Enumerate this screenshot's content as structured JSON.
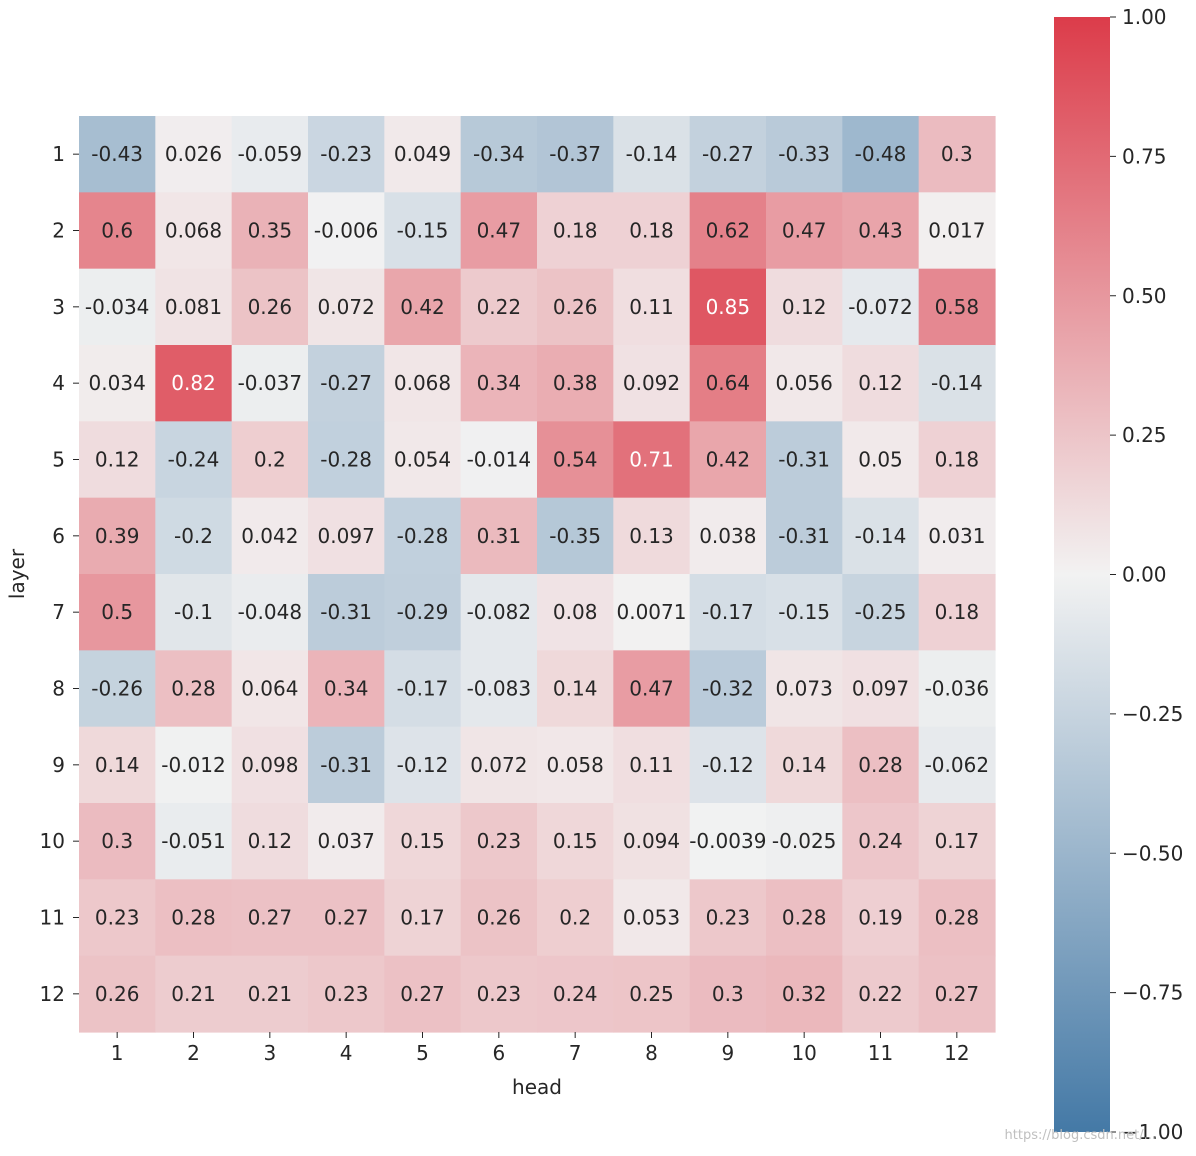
{
  "chart_data": {
    "type": "heatmap",
    "title": "",
    "xlabel": "head",
    "ylabel": "layer",
    "x_categories": [
      "1",
      "2",
      "3",
      "4",
      "5",
      "6",
      "7",
      "8",
      "9",
      "10",
      "11",
      "12"
    ],
    "y_categories": [
      "1",
      "2",
      "3",
      "4",
      "5",
      "6",
      "7",
      "8",
      "9",
      "10",
      "11",
      "12"
    ],
    "values": [
      [
        -0.43,
        0.026,
        -0.059,
        -0.23,
        0.049,
        -0.34,
        -0.37,
        -0.14,
        -0.27,
        -0.33,
        -0.48,
        0.3
      ],
      [
        0.6,
        0.068,
        0.35,
        -0.006,
        -0.15,
        0.47,
        0.18,
        0.18,
        0.62,
        0.47,
        0.43,
        0.017
      ],
      [
        -0.034,
        0.081,
        0.26,
        0.072,
        0.42,
        0.22,
        0.26,
        0.11,
        0.85,
        0.12,
        -0.072,
        0.58
      ],
      [
        0.034,
        0.82,
        -0.037,
        -0.27,
        0.068,
        0.34,
        0.38,
        0.092,
        0.64,
        0.056,
        0.12,
        -0.14
      ],
      [
        0.12,
        -0.24,
        0.2,
        -0.28,
        0.054,
        -0.014,
        0.54,
        0.71,
        0.42,
        -0.31,
        0.05,
        0.18
      ],
      [
        0.39,
        -0.2,
        0.042,
        0.097,
        -0.28,
        0.31,
        -0.35,
        0.13,
        0.038,
        -0.31,
        -0.14,
        0.031
      ],
      [
        0.5,
        -0.1,
        -0.048,
        -0.31,
        -0.29,
        -0.082,
        0.08,
        0.0071,
        -0.17,
        -0.15,
        -0.25,
        0.18
      ],
      [
        -0.26,
        0.28,
        0.064,
        0.34,
        -0.17,
        -0.083,
        0.14,
        0.47,
        -0.32,
        0.073,
        0.097,
        -0.036
      ],
      [
        0.14,
        -0.012,
        0.098,
        -0.31,
        -0.12,
        0.072,
        0.058,
        0.11,
        -0.12,
        0.14,
        0.28,
        -0.062
      ],
      [
        0.3,
        -0.051,
        0.12,
        0.037,
        0.15,
        0.23,
        0.15,
        0.094,
        -0.0039,
        -0.025,
        0.24,
        0.17
      ],
      [
        0.23,
        0.28,
        0.27,
        0.27,
        0.17,
        0.26,
        0.2,
        0.053,
        0.23,
        0.28,
        0.19,
        0.28
      ],
      [
        0.26,
        0.21,
        0.21,
        0.23,
        0.27,
        0.23,
        0.24,
        0.25,
        0.3,
        0.32,
        0.22,
        0.27
      ]
    ],
    "cell_labels": [
      [
        "-0.43",
        "0.026",
        "-0.059",
        "-0.23",
        "0.049",
        "-0.34",
        "-0.37",
        "-0.14",
        "-0.27",
        "-0.33",
        "-0.48",
        "0.3"
      ],
      [
        "0.6",
        "0.068",
        "0.35",
        "-0.006",
        "-0.15",
        "0.47",
        "0.18",
        "0.18",
        "0.62",
        "0.47",
        "0.43",
        "0.017"
      ],
      [
        "-0.034",
        "0.081",
        "0.26",
        "0.072",
        "0.42",
        "0.22",
        "0.26",
        "0.11",
        "0.85",
        "0.12",
        "-0.072",
        "0.58"
      ],
      [
        "0.034",
        "0.82",
        "-0.037",
        "-0.27",
        "0.068",
        "0.34",
        "0.38",
        "0.092",
        "0.64",
        "0.056",
        "0.12",
        "-0.14"
      ],
      [
        "0.12",
        "-0.24",
        "0.2",
        "-0.28",
        "0.054",
        "-0.014",
        "0.54",
        "0.71",
        "0.42",
        "-0.31",
        "0.05",
        "0.18"
      ],
      [
        "0.39",
        "-0.2",
        "0.042",
        "0.097",
        "-0.28",
        "0.31",
        "-0.35",
        "0.13",
        "0.038",
        "-0.31",
        "-0.14",
        "0.031"
      ],
      [
        "0.5",
        "-0.1",
        "-0.048",
        "-0.31",
        "-0.29",
        "-0.082",
        "0.08",
        "0.0071",
        "-0.17",
        "-0.15",
        "-0.25",
        "0.18"
      ],
      [
        "-0.26",
        "0.28",
        "0.064",
        "0.34",
        "-0.17",
        "-0.083",
        "0.14",
        "0.47",
        "-0.32",
        "0.073",
        "0.097",
        "-0.036"
      ],
      [
        "0.14",
        "-0.012",
        "0.098",
        "-0.31",
        "-0.12",
        "0.072",
        "0.058",
        "0.11",
        "-0.12",
        "0.14",
        "0.28",
        "-0.062"
      ],
      [
        "0.3",
        "-0.051",
        "0.12",
        "0.037",
        "0.15",
        "0.23",
        "0.15",
        "0.094",
        "-0.0039",
        "-0.025",
        "0.24",
        "0.17"
      ],
      [
        "0.23",
        "0.28",
        "0.27",
        "0.27",
        "0.17",
        "0.26",
        "0.2",
        "0.053",
        "0.23",
        "0.28",
        "0.19",
        "0.28"
      ],
      [
        "0.26",
        "0.21",
        "0.21",
        "0.23",
        "0.27",
        "0.23",
        "0.24",
        "0.25",
        "0.3",
        "0.32",
        "0.22",
        "0.27"
      ]
    ],
    "vmin": -1.0,
    "vmax": 1.0,
    "colormap": {
      "low": "#4479a6",
      "mid": "#f2f2f2",
      "high": "#dc3c4a"
    },
    "colorbar": {
      "ticks": [
        1.0,
        0.75,
        0.5,
        0.25,
        0.0,
        -0.25,
        -0.5,
        -0.75,
        -1.0
      ],
      "tick_labels": [
        "1.00",
        "0.75",
        "0.50",
        "0.25",
        "0.00",
        "−0.25",
        "−0.50",
        "−0.75",
        "−1.00"
      ]
    },
    "grid": false,
    "legend": "colorbar-right"
  },
  "watermark": "https://blog.csdn.net/..."
}
